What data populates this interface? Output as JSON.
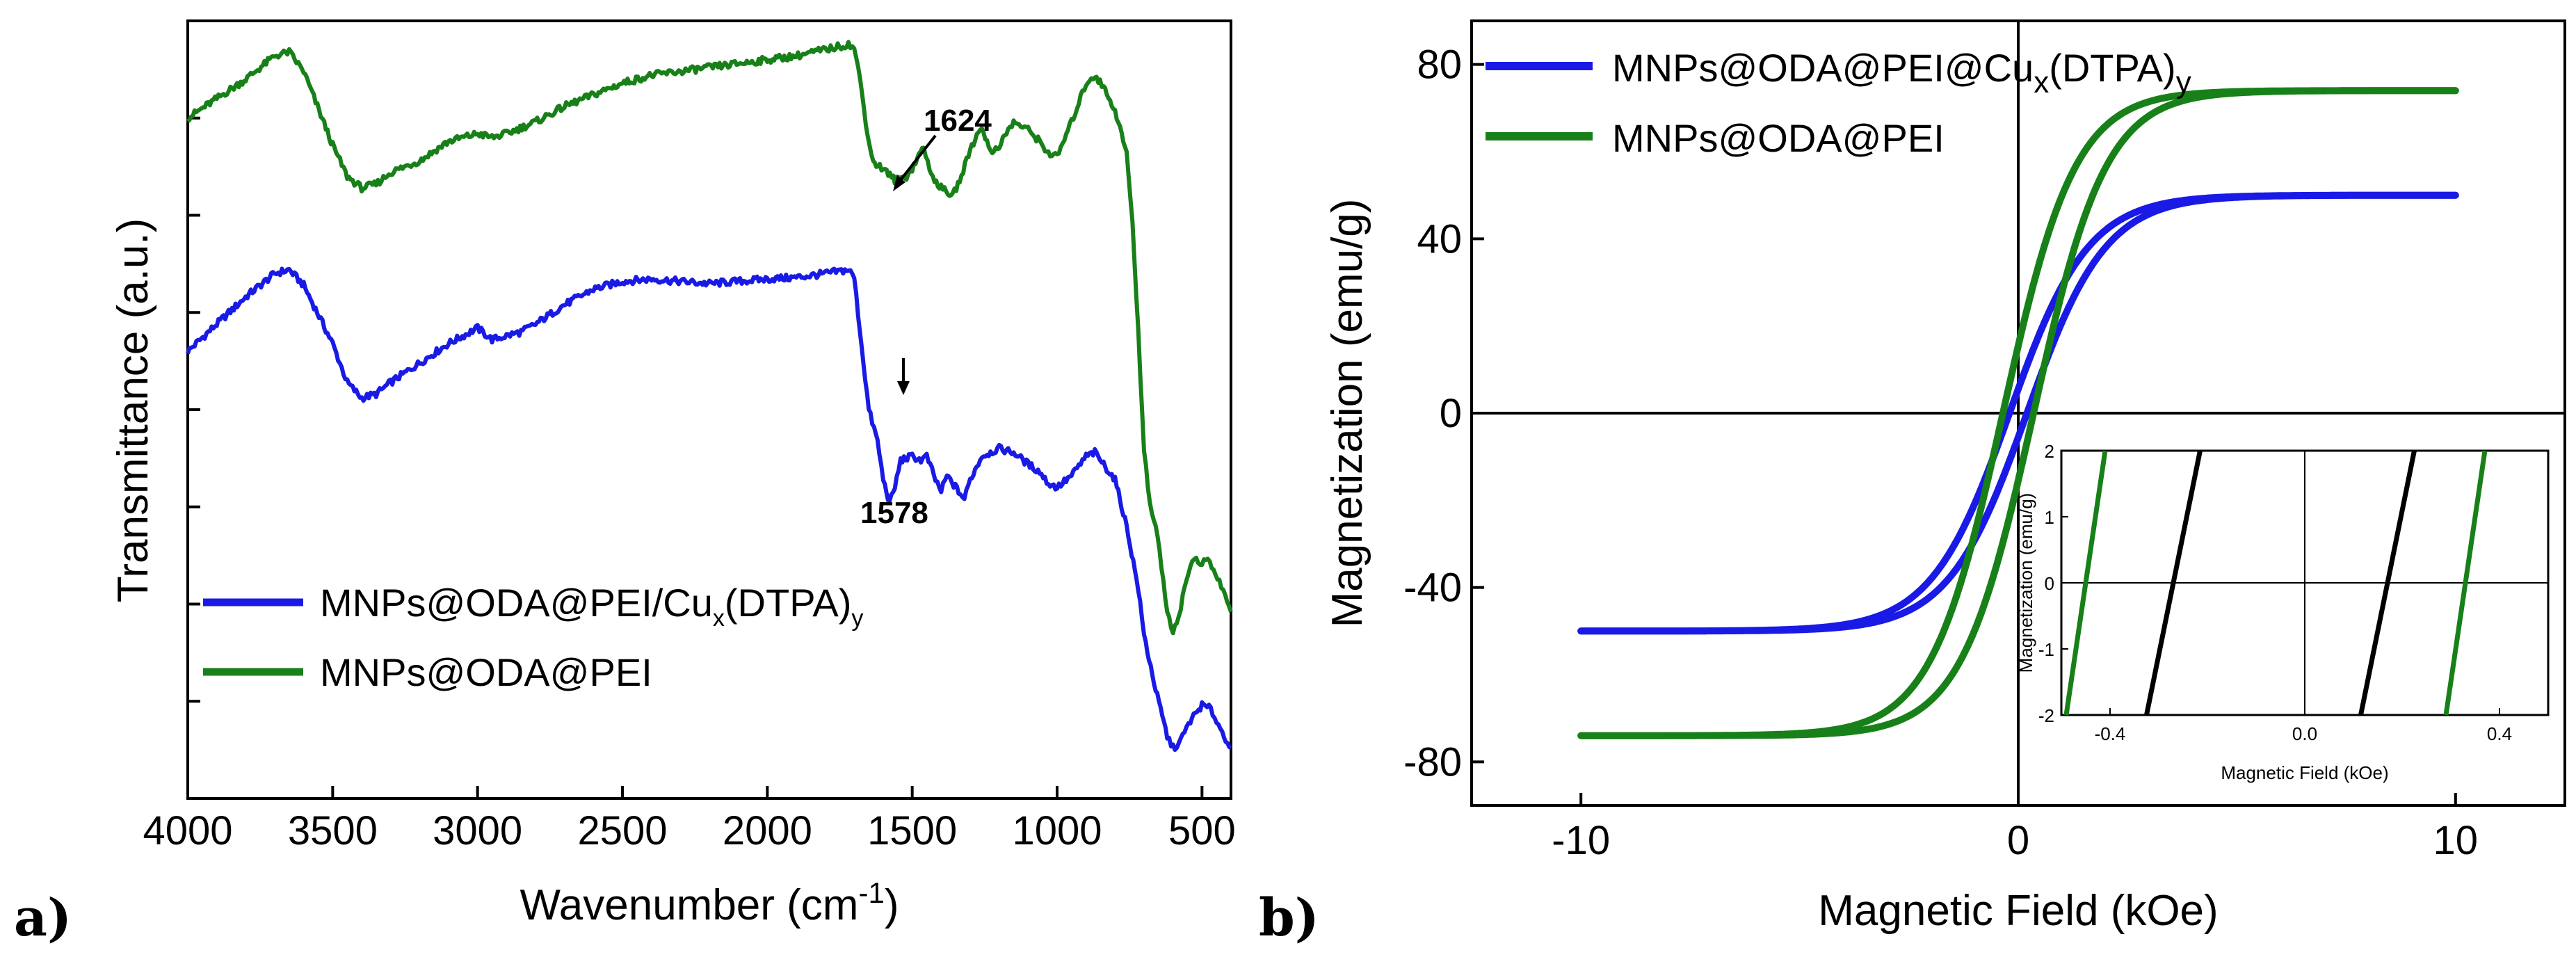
{
  "chart_data": [
    {
      "panel": "a)",
      "type": "line",
      "xlabel": "Wavenumber (cm",
      "xlabel_sup": "-1",
      "xlabel_close": ")",
      "ylabel": "Transmittance (a.u.)",
      "xlim": [
        4000,
        400
      ],
      "ylim": [
        0,
        1
      ],
      "xticks": [
        4000,
        3500,
        3000,
        2500,
        2000,
        1500,
        1000,
        500
      ],
      "legend_position": "bottom-left",
      "series": [
        {
          "name": "MNPs@ODA@PEI/Cu",
          "name_sub1": "x",
          "name_mid": "(DTPA)",
          "name_sub2": "y",
          "color": "#1a1ae6",
          "x": [
            4000,
            3900,
            3800,
            3700,
            3650,
            3600,
            3500,
            3450,
            3400,
            3350,
            3300,
            3200,
            3100,
            3000,
            2950,
            2900,
            2850,
            2800,
            2700,
            2600,
            2500,
            2400,
            2300,
            2200,
            2100,
            2000,
            1900,
            1800,
            1720,
            1700,
            1680,
            1650,
            1620,
            1600,
            1578,
            1560,
            1540,
            1500,
            1470,
            1450,
            1420,
            1400,
            1380,
            1340,
            1320,
            1300,
            1260,
            1200,
            1150,
            1100,
            1060,
            1030,
            1000,
            950,
            900,
            870,
            840,
            800,
            760,
            720,
            700,
            660,
            620,
            600,
            580,
            560,
            540,
            500,
            470,
            450,
            430,
            400
          ],
          "y": [
            0.575,
            0.61,
            0.645,
            0.675,
            0.68,
            0.66,
            0.585,
            0.535,
            0.515,
            0.52,
            0.535,
            0.56,
            0.585,
            0.605,
            0.59,
            0.595,
            0.6,
            0.61,
            0.635,
            0.655,
            0.665,
            0.668,
            0.665,
            0.662,
            0.665,
            0.668,
            0.67,
            0.675,
            0.68,
            0.67,
            0.6,
            0.5,
            0.46,
            0.41,
            0.38,
            0.4,
            0.435,
            0.44,
            0.435,
            0.44,
            0.41,
            0.395,
            0.415,
            0.395,
            0.385,
            0.41,
            0.44,
            0.45,
            0.445,
            0.43,
            0.42,
            0.405,
            0.4,
            0.415,
            0.44,
            0.445,
            0.43,
            0.41,
            0.35,
            0.27,
            0.21,
            0.14,
            0.08,
            0.065,
            0.07,
            0.085,
            0.1,
            0.12,
            0.115,
            0.1,
            0.085,
            0.065
          ]
        },
        {
          "name": "MNPs@ODA@PEI",
          "color": "#188018",
          "x": [
            4000,
            3900,
            3800,
            3700,
            3650,
            3600,
            3500,
            3450,
            3400,
            3350,
            3300,
            3200,
            3100,
            3000,
            2950,
            2900,
            2800,
            2700,
            2600,
            2500,
            2400,
            2300,
            2200,
            2100,
            2000,
            1900,
            1800,
            1720,
            1700,
            1680,
            1660,
            1640,
            1624,
            1600,
            1560,
            1520,
            1500,
            1460,
            1440,
            1400,
            1360,
            1330,
            1300,
            1260,
            1230,
            1200,
            1150,
            1100,
            1060,
            1030,
            1000,
            950,
            900,
            870,
            840,
            800,
            760,
            740,
            720,
            700,
            680,
            660,
            640,
            620,
            600,
            580,
            560,
            540,
            520,
            500,
            480,
            460,
            440,
            420,
            400
          ],
          "y": [
            0.875,
            0.9,
            0.925,
            0.955,
            0.96,
            0.935,
            0.84,
            0.8,
            0.785,
            0.79,
            0.805,
            0.82,
            0.845,
            0.855,
            0.85,
            0.855,
            0.87,
            0.89,
            0.905,
            0.92,
            0.93,
            0.935,
            0.94,
            0.945,
            0.95,
            0.955,
            0.963,
            0.97,
            0.965,
            0.925,
            0.87,
            0.825,
            0.815,
            0.81,
            0.795,
            0.8,
            0.81,
            0.84,
            0.805,
            0.785,
            0.775,
            0.8,
            0.835,
            0.865,
            0.83,
            0.84,
            0.87,
            0.86,
            0.845,
            0.83,
            0.825,
            0.87,
            0.92,
            0.93,
            0.915,
            0.885,
            0.83,
            0.74,
            0.6,
            0.45,
            0.38,
            0.35,
            0.3,
            0.24,
            0.215,
            0.235,
            0.27,
            0.3,
            0.31,
            0.3,
            0.31,
            0.29,
            0.28,
            0.26,
            0.24
          ]
        }
      ],
      "annotations": [
        {
          "text": "1624",
          "x": 1624,
          "series": 1
        },
        {
          "text": "1578",
          "x": 1578,
          "series": 0
        }
      ]
    },
    {
      "panel": "b)",
      "type": "line",
      "xlabel": "Magnetic Field (kOe)",
      "ylabel": "Magnetization (emu/g)",
      "xlim": [
        -12.5,
        12.5
      ],
      "ylim": [
        -90,
        90
      ],
      "xticks": [
        -10,
        0,
        10
      ],
      "yticks": [
        80,
        40,
        0,
        -40,
        -80
      ],
      "legend_position": "top-left",
      "series": [
        {
          "name": "MNPs@ODA@PEI@Cu",
          "name_sub1": "x",
          "name_mid": "(DTPA)",
          "name_sub2": "y",
          "color": "#1a1ae6",
          "ms": 50,
          "hc": 0.2,
          "h0": 1.8
        },
        {
          "name": "MNPs@ODA@PEI",
          "color": "#188018",
          "ms": 74,
          "hc": 0.35,
          "h0": 1.65
        }
      ],
      "inset": {
        "xlabel": "Magnetic Field (kOe)",
        "ylabel": "Magnetization (emu/g)",
        "xlim": [
          -0.5,
          0.5
        ],
        "ylim": [
          -2,
          2
        ],
        "xticks": [
          -0.4,
          0.0,
          0.4
        ],
        "xtick_labels": [
          "-0.4",
          "0.0",
          "0.4"
        ],
        "yticks": [
          2,
          1,
          0,
          -1,
          -2
        ],
        "series": [
          {
            "name": "black",
            "color": "#000000",
            "x0": [
              -0.27,
              0.17
            ],
            "slope": 0.11
          },
          {
            "name": "green",
            "color": "#188018",
            "x0": [
              -0.45,
              0.33
            ],
            "slope": 0.08
          }
        ]
      }
    }
  ]
}
